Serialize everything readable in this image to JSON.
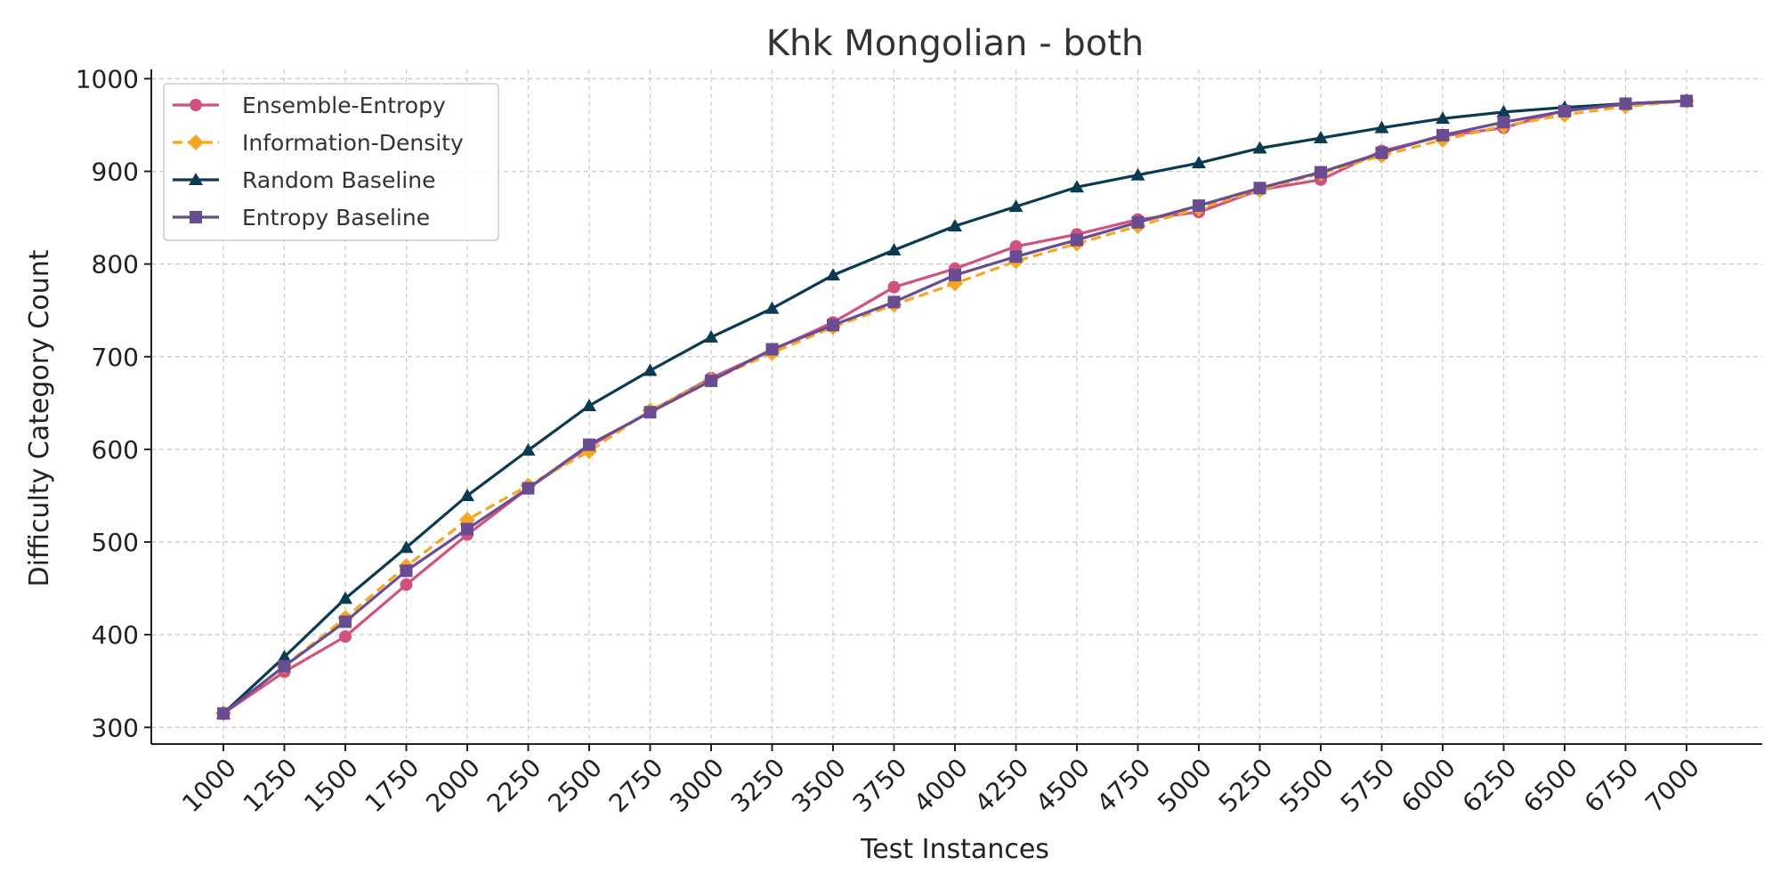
{
  "chart_data": {
    "type": "line",
    "title": "Khk Mongolian - both",
    "xlabel": "Test Instances",
    "ylabel": "Difficulty Category Count",
    "x": [
      1000,
      1250,
      1500,
      1750,
      2000,
      2250,
      2500,
      2750,
      3000,
      3250,
      3500,
      3750,
      4000,
      4250,
      4500,
      4750,
      5000,
      5250,
      5500,
      5750,
      6000,
      6250,
      6500,
      6750,
      7000
    ],
    "x_tick_labels": [
      "1000",
      "1250",
      "1500",
      "1750",
      "2000",
      "2250",
      "2500",
      "2750",
      "3000",
      "3250",
      "3500",
      "3750",
      "4000",
      "4250",
      "4500",
      "4750",
      "5000",
      "5250",
      "5500",
      "5750",
      "6000",
      "6250",
      "6500",
      "6750",
      "7000"
    ],
    "y_ticks": [
      300,
      400,
      500,
      600,
      700,
      800,
      900,
      1000
    ],
    "y_tick_labels": [
      "300",
      "400",
      "500",
      "600",
      "700",
      "800",
      "900",
      "1000"
    ],
    "ylim": [
      282,
      1010
    ],
    "grid": true,
    "legend_position": "top-left",
    "series": [
      {
        "name": "Ensemble-Entropy",
        "color": "#d1517f",
        "marker": "circle",
        "linestyle": "solid",
        "values": [
          315,
          360,
          398,
          454,
          508,
          558,
          603,
          641,
          677,
          707,
          737,
          775,
          795,
          819,
          832,
          848,
          856,
          880,
          891,
          922,
          938,
          947,
          966,
          972,
          976
        ]
      },
      {
        "name": "Information-Density",
        "color": "#f5a623",
        "marker": "diamond",
        "linestyle": "dashed",
        "values": [
          315,
          366,
          418,
          474,
          524,
          561,
          598,
          642,
          675,
          704,
          732,
          756,
          779,
          803,
          822,
          841,
          860,
          880,
          898,
          917,
          934,
          949,
          961,
          970,
          976
        ]
      },
      {
        "name": "Random Baseline",
        "color": "#0b3a53",
        "marker": "triangle",
        "linestyle": "solid",
        "values": [
          315,
          376,
          439,
          494,
          550,
          599,
          647,
          685,
          721,
          752,
          788,
          815,
          841,
          862,
          883,
          896,
          909,
          925,
          936,
          947,
          957,
          964,
          969,
          973,
          976
        ]
      },
      {
        "name": "Entropy Baseline",
        "color": "#6a4c93",
        "marker": "square",
        "linestyle": "solid",
        "values": [
          315,
          366,
          414,
          469,
          514,
          558,
          605,
          640,
          674,
          708,
          734,
          759,
          788,
          808,
          826,
          845,
          863,
          882,
          899,
          920,
          939,
          953,
          965,
          973,
          976
        ]
      }
    ]
  }
}
